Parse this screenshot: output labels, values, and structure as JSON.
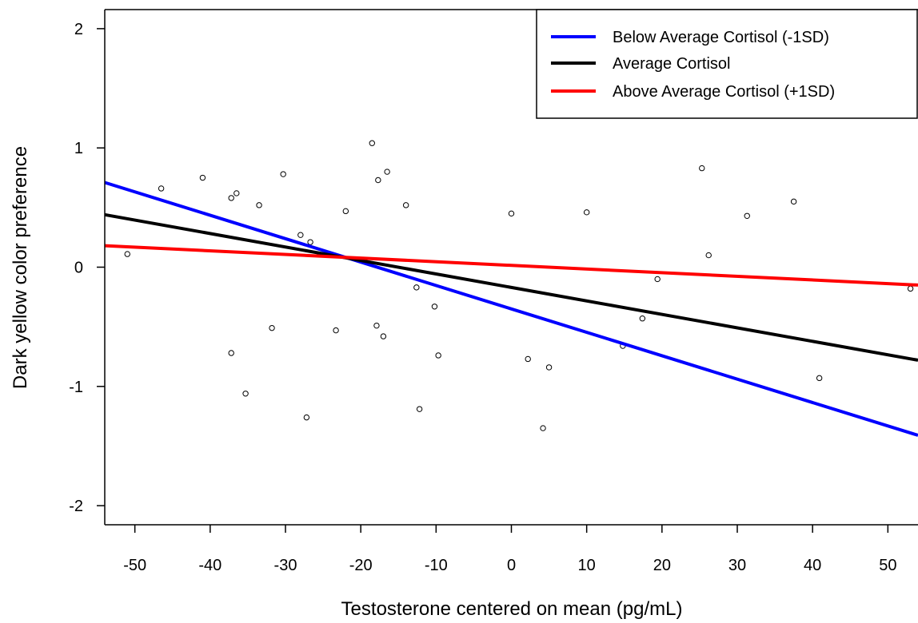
{
  "chart_data": {
    "type": "scatter",
    "title": "",
    "xlabel": "Testosterone centered on mean (pg/mL)",
    "ylabel": "Dark yellow color preference",
    "xlim": [
      -54,
      54
    ],
    "ylim": [
      -2.16,
      2.16
    ],
    "x_ticks": [
      -50,
      -40,
      -30,
      -20,
      -10,
      0,
      10,
      20,
      30,
      40,
      50
    ],
    "x_tick_labels": [
      "-50",
      "-40",
      "-30",
      "-20",
      "-10",
      "0",
      "10",
      "20",
      "30",
      "40",
      "50"
    ],
    "y_ticks": [
      -2,
      -1,
      0,
      1,
      2
    ],
    "y_tick_labels": [
      "-2",
      "-1",
      "0",
      "1",
      "2"
    ],
    "grid": false,
    "legend_position": "top-right",
    "points": {
      "x": [
        -51,
        -46.5,
        -41,
        -37.2,
        -36.5,
        -33.5,
        -30.3,
        -28,
        -26.7,
        -22,
        -18.5,
        -17.7,
        -16.5,
        -14,
        0,
        10,
        25.3,
        26.2,
        31.3,
        37.5,
        53,
        -37.2,
        -35.3,
        -31.8,
        -27.2,
        -23.3,
        -17.9,
        -17,
        -12.6,
        -12.2,
        -10.2,
        -9.7,
        2.2,
        4.2,
        5,
        14.8,
        17.4,
        19.4,
        40.9
      ],
      "y": [
        0.11,
        0.66,
        0.75,
        0.58,
        0.62,
        0.52,
        0.78,
        0.27,
        0.21,
        0.47,
        1.04,
        0.73,
        0.8,
        0.52,
        0.45,
        0.46,
        0.83,
        0.1,
        0.43,
        0.55,
        -0.18,
        -0.72,
        -1.06,
        -0.51,
        -1.26,
        -0.53,
        -0.49,
        -0.58,
        -0.17,
        -1.19,
        -0.33,
        -0.74,
        -0.77,
        -1.35,
        -0.84,
        -0.66,
        -0.43,
        -0.1,
        -0.93
      ]
    },
    "series": [
      {
        "name": "Below Average Cortisol (-1SD)",
        "color": "#0000ff",
        "x": [
          -54,
          54
        ],
        "y": [
          0.71,
          -1.41
        ]
      },
      {
        "name": "Average Cortisol",
        "color": "#000000",
        "x": [
          -54,
          54
        ],
        "y": [
          0.44,
          -0.78
        ]
      },
      {
        "name": "Above Average Cortisol (+1SD)",
        "color": "#ff0000",
        "x": [
          -54,
          54
        ],
        "y": [
          0.18,
          -0.15
        ]
      }
    ]
  }
}
